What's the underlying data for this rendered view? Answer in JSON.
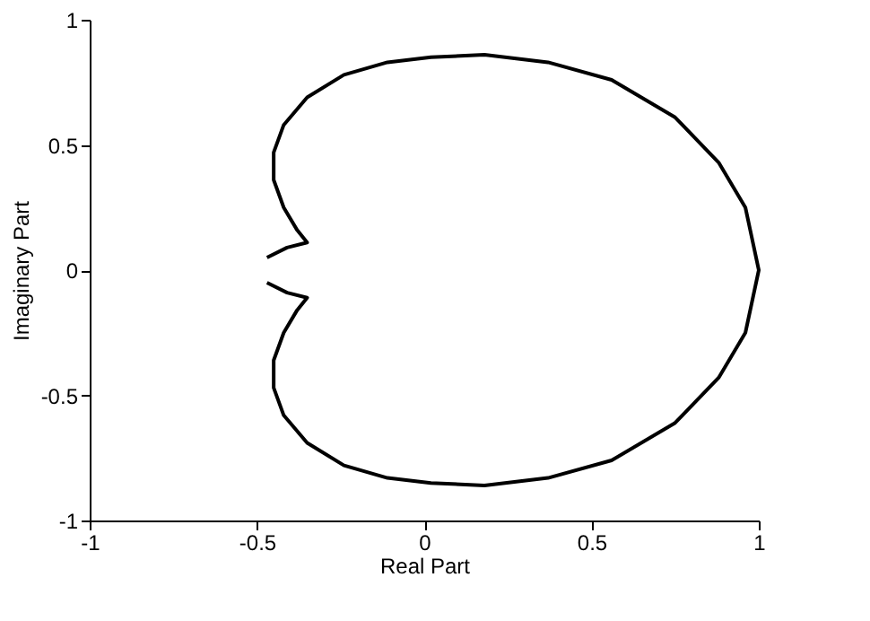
{
  "chart_data": {
    "type": "line",
    "xlabel": "Real Part",
    "ylabel": "Imaginary Part",
    "xlim": [
      -1,
      1
    ],
    "ylim": [
      -1,
      1
    ],
    "xticks": [
      -1,
      -0.5,
      0,
      0.5,
      1
    ],
    "yticks": [
      -1,
      -0.5,
      0,
      0.5,
      1
    ],
    "grid": false,
    "marker": "none",
    "line_style": "solid",
    "series": [
      {
        "color": "#000000",
        "x": [
          -0.47,
          -0.41,
          -0.35,
          -0.38,
          -0.42,
          -0.45,
          -0.45,
          -0.42,
          -0.35,
          -0.24,
          -0.11,
          0.02,
          0.18,
          0.37,
          0.56,
          0.75,
          0.88,
          0.96,
          1.0,
          0.96,
          0.88,
          0.75,
          0.56,
          0.37,
          0.18,
          0.02,
          -0.11,
          -0.24,
          -0.35,
          -0.42,
          -0.45,
          -0.45,
          -0.42,
          -0.38,
          -0.35,
          -0.41,
          -0.47
        ],
        "values": [
          0.05,
          0.09,
          0.11,
          0.16,
          0.25,
          0.36,
          0.47,
          0.58,
          0.69,
          0.78,
          0.83,
          0.85,
          0.86,
          0.83,
          0.76,
          0.61,
          0.43,
          0.25,
          0.0,
          -0.25,
          -0.43,
          -0.61,
          -0.76,
          -0.83,
          -0.86,
          -0.85,
          -0.83,
          -0.78,
          -0.69,
          -0.58,
          -0.47,
          -0.36,
          -0.25,
          -0.16,
          -0.11,
          -0.09,
          -0.05
        ]
      }
    ]
  }
}
